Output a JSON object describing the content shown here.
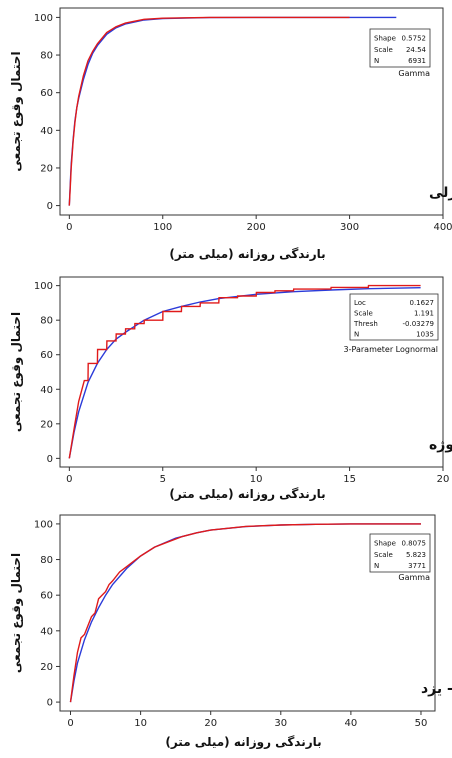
{
  "chart_data": [
    {
      "type": "line",
      "region_label": "الف- بندر انزلی",
      "xlabel": "بارندگی روزانه (میلی متر)",
      "ylabel": "احتمال وقوع تجمعی",
      "distribution": "Gamma",
      "stats": [
        {
          "name": "Shape",
          "value": "0.5752"
        },
        {
          "name": "Scale",
          "value": "24.54"
        },
        {
          "name": "N",
          "value": "6931"
        }
      ],
      "xlim": [
        -10,
        400
      ],
      "ylim": [
        -5,
        105
      ],
      "xticks": [
        0,
        100,
        200,
        300,
        400
      ],
      "yticks": [
        0,
        20,
        40,
        60,
        80,
        100
      ],
      "colors": {
        "fitted": "#2b3bd9",
        "empirical": "#e01a1a"
      },
      "series": [
        {
          "kind": "fitted",
          "x": [
            0,
            1,
            2,
            4,
            6,
            8,
            10,
            15,
            20,
            25,
            30,
            40,
            50,
            60,
            80,
            100,
            150,
            200,
            250,
            300,
            350
          ],
          "y": [
            0,
            12,
            22,
            35,
            45,
            52,
            57,
            67,
            75,
            81,
            85,
            91,
            94.5,
            96.5,
            98.6,
            99.4,
            99.9,
            100,
            100,
            100,
            100
          ]
        },
        {
          "kind": "empirical",
          "x": [
            0,
            1,
            2,
            4,
            6,
            8,
            10,
            15,
            20,
            25,
            30,
            40,
            50,
            60,
            80,
            100,
            150,
            200,
            250,
            300
          ],
          "y": [
            0,
            10,
            20,
            34,
            44,
            52,
            58,
            69,
            77,
            82,
            86,
            92,
            95,
            97,
            99,
            99.6,
            100,
            100,
            100,
            100
          ]
        }
      ]
    },
    {
      "type": "line",
      "region_label": "ب- همدان نوژه",
      "xlabel": "بارندگی روزانه (میلی متر)",
      "ylabel": "احتمال وقوع تجمعی",
      "distribution": "3-Parameter Lognormal",
      "stats": [
        {
          "name": "Loc",
          "value": "0.1627"
        },
        {
          "name": "Scale",
          "value": "1.191"
        },
        {
          "name": "Thresh",
          "value": "-0.03279"
        },
        {
          "name": "N",
          "value": "1035"
        }
      ],
      "xlim": [
        -0.5,
        20
      ],
      "ylim": [
        -5,
        105
      ],
      "xticks": [
        0,
        5,
        10,
        15,
        20
      ],
      "yticks": [
        0,
        20,
        40,
        60,
        80,
        100
      ],
      "colors": {
        "fitted": "#2b3bd9",
        "empirical": "#e01a1a"
      },
      "series": [
        {
          "kind": "fitted",
          "x": [
            0,
            0.25,
            0.5,
            1,
            1.5,
            2,
            2.5,
            3,
            4,
            5,
            6,
            7,
            8,
            10,
            12,
            14,
            16,
            18.8
          ],
          "y": [
            0,
            15,
            27,
            44,
            55,
            63,
            69,
            73,
            80,
            85,
            88,
            90.5,
            92.5,
            95,
            96.5,
            97.5,
            98.2,
            98.8
          ]
        },
        {
          "kind": "empirical",
          "x": [
            0,
            0.3,
            0.5,
            0.8,
            1,
            1.01,
            1.5,
            1.51,
            2,
            2.01,
            2.5,
            2.51,
            3,
            3.01,
            3.5,
            3.51,
            4,
            4.01,
            5,
            5.01,
            6,
            6.01,
            7,
            7.01,
            8,
            8.01,
            9,
            9.01,
            10,
            10.01,
            11,
            11.01,
            12,
            12.01,
            14,
            14.01,
            16,
            16.01,
            18.8
          ],
          "y": [
            0,
            20,
            33,
            45,
            45,
            55,
            55,
            63,
            63,
            68,
            68,
            72,
            72,
            75,
            75,
            78,
            78,
            80,
            80,
            85,
            85,
            88,
            88,
            90,
            90,
            93,
            93,
            94,
            94,
            96,
            96,
            97,
            97,
            98,
            98,
            99,
            99,
            100,
            100
          ]
        }
      ]
    },
    {
      "type": "line",
      "region_label": "ج- یزد",
      "xlabel": "بارندگی روزانه (میلی متر)",
      "ylabel": "احتمال وقوع تجمعی",
      "distribution": "Gamma",
      "stats": [
        {
          "name": "Shape",
          "value": "0.8075"
        },
        {
          "name": "Scale",
          "value": "5.823"
        },
        {
          "name": "N",
          "value": "3771"
        }
      ],
      "xlim": [
        -1.5,
        52
      ],
      "ylim": [
        -5,
        105
      ],
      "xticks": [
        0,
        10,
        20,
        30,
        40,
        50
      ],
      "yticks": [
        0,
        20,
        40,
        60,
        80,
        100
      ],
      "colors": {
        "fitted": "#2b3bd9",
        "empirical": "#e01a1a"
      },
      "series": [
        {
          "kind": "fitted",
          "x": [
            0,
            0.5,
            1,
            2,
            3,
            4,
            5,
            6,
            8,
            10,
            12,
            15,
            18,
            20,
            25,
            30,
            35,
            40,
            50
          ],
          "y": [
            0,
            12,
            22,
            35,
            45,
            53,
            60,
            66,
            75,
            82,
            87,
            92,
            95,
            96.5,
            98.5,
            99.4,
            99.8,
            100,
            100
          ]
        },
        {
          "kind": "empirical",
          "x": [
            0,
            0.5,
            1,
            1.5,
            2,
            3,
            3.5,
            4,
            5,
            5.5,
            6,
            7,
            8,
            9,
            10,
            12,
            14,
            16,
            18,
            20,
            25,
            30,
            35,
            40,
            50
          ],
          "y": [
            0,
            15,
            28,
            36,
            38,
            48,
            50,
            58,
            62,
            66,
            68,
            73,
            76,
            79,
            82,
            87,
            90,
            93,
            95,
            96.5,
            98.6,
            99.4,
            99.8,
            100,
            100
          ]
        }
      ]
    }
  ]
}
